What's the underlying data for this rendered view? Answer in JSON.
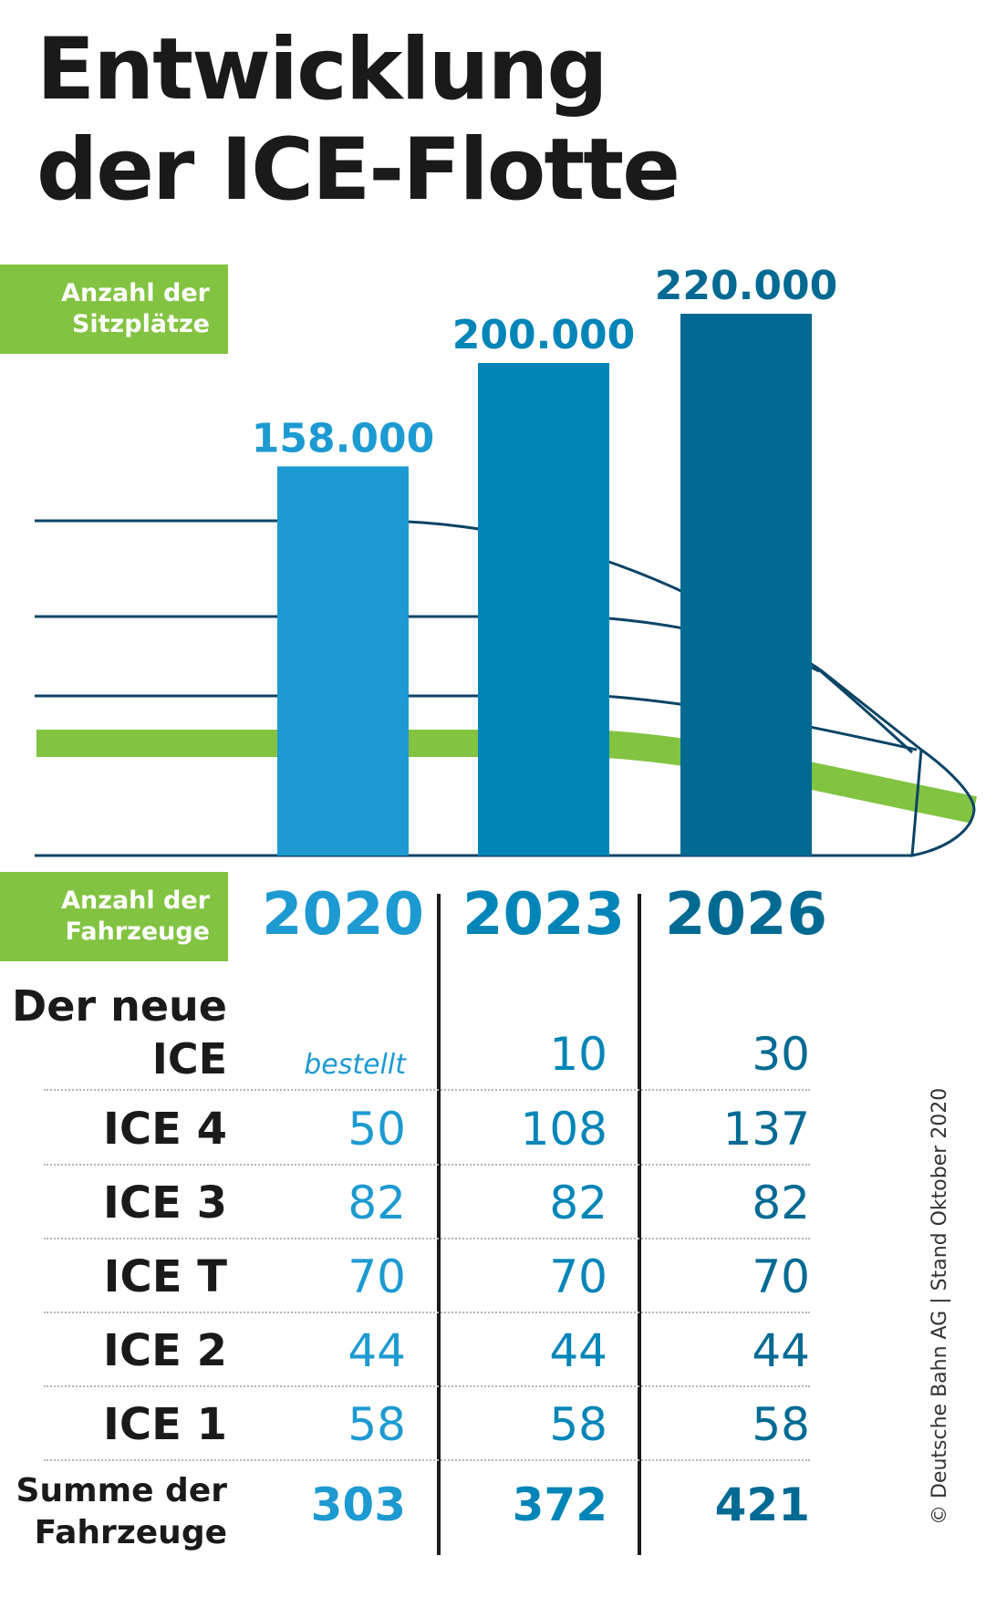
{
  "title": {
    "line1": "Entwicklung",
    "line2": "der ICE-Flotte"
  },
  "seats_tag": {
    "line1": "Anzahl der",
    "line2": "Sitzplätze"
  },
  "vehicles_tag": {
    "line1": "Anzahl der",
    "line2": "Fahrzeuge"
  },
  "chart_data": {
    "type": "bar",
    "categories": [
      "2020",
      "2023",
      "2026"
    ],
    "values": [
      158000,
      200000,
      220000
    ],
    "value_labels": [
      "158.000",
      "200.000",
      "220.000"
    ],
    "colors": [
      "#1d9ad1",
      "#0085b8",
      "#006a93"
    ],
    "ylim": [
      0,
      220000
    ]
  },
  "table": {
    "years": [
      "2020",
      "2023",
      "2026"
    ],
    "rows": [
      {
        "label1": "Der neue",
        "label2": "ICE",
        "values": [
          "bestellt",
          "10",
          "30"
        ]
      },
      {
        "label1": "ICE 4",
        "label2": "",
        "values": [
          "50",
          "108",
          "137"
        ]
      },
      {
        "label1": "ICE 3",
        "label2": "",
        "values": [
          "82",
          "82",
          "82"
        ]
      },
      {
        "label1": "ICE T",
        "label2": "",
        "values": [
          "70",
          "70",
          "70"
        ]
      },
      {
        "label1": "ICE 2",
        "label2": "",
        "values": [
          "44",
          "44",
          "44"
        ]
      },
      {
        "label1": "ICE 1",
        "label2": "",
        "values": [
          "58",
          "58",
          "58"
        ]
      }
    ],
    "total": {
      "label1": "Summe der",
      "label2": "Fahrzeuge",
      "values": [
        "303",
        "372",
        "421"
      ]
    }
  },
  "credit": "© Deutsche Bahn AG | Stand Oktober 2020"
}
